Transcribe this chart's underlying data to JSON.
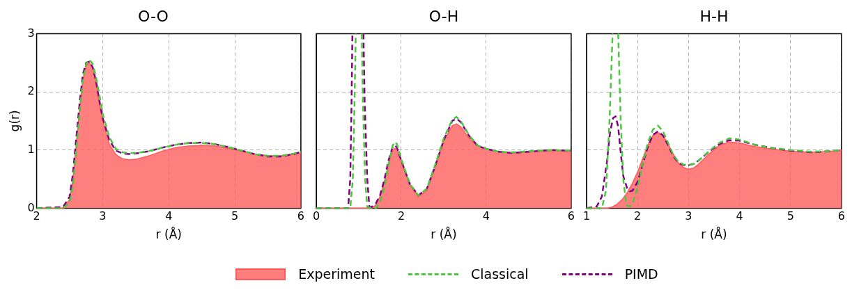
{
  "chart_data": [
    {
      "type": "line",
      "title": "O-O",
      "xlabel": "r (Å)",
      "ylabel": "g(r)",
      "xlim": [
        2,
        6
      ],
      "xticks": [
        2,
        3,
        4,
        5,
        6
      ],
      "ylim": [
        0,
        3
      ],
      "yticks": [
        0,
        1,
        2,
        3
      ],
      "grid": true,
      "marker": "none",
      "legend": "bottom",
      "series": [
        {
          "name": "Experiment",
          "type": "area",
          "color": "#ff5a5a",
          "x": [
            2,
            2.4,
            2.5,
            2.55,
            2.6,
            2.65,
            2.7,
            2.75,
            2.8,
            2.85,
            2.9,
            2.95,
            3.0,
            3.1,
            3.2,
            3.3,
            3.4,
            3.5,
            3.7,
            3.9,
            4.1,
            4.3,
            4.5,
            4.7,
            4.9,
            5.1,
            5.3,
            5.5,
            5.7,
            5.9,
            6
          ],
          "values": [
            0,
            0,
            0.15,
            0.5,
            1.1,
            1.7,
            2.2,
            2.45,
            2.5,
            2.4,
            2.15,
            1.8,
            1.5,
            1.1,
            0.92,
            0.85,
            0.83,
            0.84,
            0.9,
            0.98,
            1.04,
            1.07,
            1.08,
            1.07,
            1.03,
            0.98,
            0.93,
            0.9,
            0.9,
            0.93,
            0.95
          ]
        },
        {
          "name": "Classical",
          "type": "line",
          "line_style": "dashed",
          "color": "#4cc63f",
          "x": [
            2,
            2.4,
            2.5,
            2.55,
            2.6,
            2.65,
            2.7,
            2.75,
            2.8,
            2.85,
            2.9,
            2.95,
            3.0,
            3.1,
            3.2,
            3.3,
            3.4,
            3.5,
            3.7,
            3.9,
            4.1,
            4.3,
            4.5,
            4.7,
            4.9,
            5.1,
            5.3,
            5.5,
            5.7,
            5.9,
            6
          ],
          "values": [
            0,
            0,
            0.1,
            0.4,
            1.0,
            1.65,
            2.2,
            2.48,
            2.55,
            2.48,
            2.25,
            1.95,
            1.62,
            1.22,
            1.02,
            0.96,
            0.95,
            0.95,
            0.98,
            1.04,
            1.09,
            1.12,
            1.12,
            1.1,
            1.05,
            0.99,
            0.93,
            0.9,
            0.9,
            0.94,
            0.97
          ]
        },
        {
          "name": "PIMD",
          "type": "line",
          "line_style": "dashed",
          "color": "#800080",
          "x": [
            2,
            2.4,
            2.5,
            2.55,
            2.6,
            2.65,
            2.7,
            2.75,
            2.8,
            2.85,
            2.9,
            2.95,
            3.0,
            3.1,
            3.2,
            3.3,
            3.4,
            3.5,
            3.7,
            3.9,
            4.1,
            4.3,
            4.5,
            4.7,
            4.9,
            5.1,
            5.3,
            5.5,
            5.7,
            5.9,
            6
          ],
          "values": [
            0,
            0.02,
            0.2,
            0.6,
            1.2,
            1.8,
            2.3,
            2.5,
            2.52,
            2.42,
            2.18,
            1.85,
            1.55,
            1.17,
            0.99,
            0.94,
            0.93,
            0.94,
            0.98,
            1.04,
            1.09,
            1.12,
            1.13,
            1.1,
            1.05,
            0.99,
            0.93,
            0.89,
            0.89,
            0.93,
            0.97
          ]
        }
      ]
    },
    {
      "type": "line",
      "title": "O-H",
      "xlabel": "r (Å)",
      "xlim": [
        0,
        6
      ],
      "xticks": [
        0,
        2,
        4,
        6
      ],
      "ylim": [
        0,
        3
      ],
      "yticks": [
        0,
        1,
        2,
        3
      ],
      "grid": true,
      "tick_labels": "x",
      "marker": "none",
      "series": [
        {
          "type": "area",
          "color": "#ff5a5a",
          "x": [
            0,
            1.2,
            1.3,
            1.4,
            1.5,
            1.6,
            1.7,
            1.8,
            1.85,
            1.9,
            2.0,
            2.2,
            2.4,
            2.6,
            2.8,
            3.0,
            3.2,
            3.3,
            3.4,
            3.6,
            3.8,
            4.0,
            4.3,
            4.6,
            5.0,
            5.5,
            6
          ],
          "values": [
            0,
            0,
            0,
            0.05,
            0.2,
            0.45,
            0.75,
            1.0,
            1.03,
            1.0,
            0.8,
            0.4,
            0.2,
            0.3,
            0.7,
            1.15,
            1.42,
            1.45,
            1.4,
            1.2,
            1.07,
            1.02,
            0.97,
            0.95,
            0.97,
            0.99,
            0.98
          ]
        },
        {
          "type": "line",
          "line_style": "dashed",
          "color": "#4cc63f",
          "x": [
            0,
            0.8,
            0.86,
            0.9,
            0.93,
            1.0,
            1.07,
            1.1,
            1.15,
            1.2,
            1.3,
            1.4,
            1.5,
            1.6,
            1.7,
            1.8,
            1.85,
            1.9,
            2.0,
            2.2,
            2.4,
            2.6,
            2.8,
            3.0,
            3.2,
            3.3,
            3.4,
            3.6,
            3.8,
            4.0,
            4.3,
            4.6,
            5.0,
            5.5,
            6
          ],
          "values": [
            0,
            0,
            0.5,
            1.8,
            3,
            null,
            3,
            1.8,
            0.5,
            0.02,
            0,
            0,
            0.1,
            0.35,
            0.75,
            1.08,
            1.14,
            1.1,
            0.85,
            0.42,
            0.22,
            0.33,
            0.75,
            1.2,
            1.52,
            1.57,
            1.5,
            1.25,
            1.08,
            1.02,
            0.97,
            0.96,
            0.98,
            1.0,
            0.99
          ]
        },
        {
          "type": "line",
          "line_style": "dashed",
          "color": "#800080",
          "x": [
            0,
            0.75,
            0.8,
            0.83,
            0.85,
            0.98,
            1.11,
            1.14,
            1.2,
            1.25,
            1.3,
            1.4,
            1.5,
            1.6,
            1.7,
            1.8,
            1.85,
            1.9,
            2.0,
            2.2,
            2.4,
            2.6,
            2.8,
            3.0,
            3.2,
            3.3,
            3.4,
            3.6,
            3.8,
            4.0,
            4.3,
            4.6,
            5.0,
            5.5,
            6
          ],
          "values": [
            0,
            0,
            0.5,
            1.8,
            3,
            null,
            3,
            1.8,
            0.5,
            0.02,
            0.02,
            0.08,
            0.22,
            0.48,
            0.82,
            1.06,
            1.08,
            1.04,
            0.82,
            0.42,
            0.22,
            0.33,
            0.73,
            1.17,
            1.5,
            1.54,
            1.48,
            1.24,
            1.07,
            1.02,
            0.97,
            0.95,
            0.97,
            1.0,
            0.99
          ]
        }
      ]
    },
    {
      "type": "line",
      "title": "H-H",
      "xlabel": "r (Å)",
      "xlim": [
        1,
        6
      ],
      "xticks": [
        1,
        2,
        3,
        4,
        5,
        6
      ],
      "ylim": [
        0,
        3
      ],
      "yticks": [
        0,
        1,
        2,
        3
      ],
      "grid": true,
      "tick_labels": "x",
      "marker": "none",
      "series": [
        {
          "type": "area",
          "color": "#ff5a5a",
          "x": [
            1,
            1.4,
            1.5,
            1.6,
            1.7,
            1.8,
            1.9,
            2.0,
            2.1,
            2.2,
            2.3,
            2.4,
            2.5,
            2.6,
            2.7,
            2.8,
            2.9,
            3.0,
            3.1,
            3.2,
            3.4,
            3.6,
            3.8,
            4.0,
            4.3,
            4.6,
            5.0,
            5.4,
            5.8,
            6
          ],
          "values": [
            0,
            0,
            0.02,
            0.07,
            0.15,
            0.27,
            0.43,
            0.62,
            0.85,
            1.08,
            1.25,
            1.3,
            1.25,
            1.1,
            0.93,
            0.78,
            0.7,
            0.67,
            0.69,
            0.76,
            0.93,
            1.08,
            1.14,
            1.12,
            1.06,
            1.02,
            0.98,
            0.96,
            0.98,
            1.0
          ]
        },
        {
          "type": "line",
          "line_style": "dashed",
          "color": "#4cc63f",
          "x": [
            1,
            1.3,
            1.38,
            1.45,
            1.51,
            1.56,
            1.62,
            1.67,
            1.72,
            1.78,
            1.85,
            1.9,
            2.0,
            2.1,
            2.2,
            2.3,
            2.4,
            2.5,
            2.6,
            2.7,
            2.8,
            2.9,
            3.0,
            3.1,
            3.2,
            3.4,
            3.6,
            3.8,
            4.0,
            4.3,
            4.6,
            5.0,
            5.4,
            5.8,
            6
          ],
          "values": [
            0,
            0,
            0.3,
            1.5,
            3,
            null,
            3,
            1.5,
            0.5,
            0.05,
            0.03,
            0.08,
            0.35,
            0.75,
            1.12,
            1.35,
            1.42,
            1.32,
            1.12,
            0.92,
            0.8,
            0.75,
            0.74,
            0.76,
            0.82,
            0.98,
            1.12,
            1.2,
            1.18,
            1.09,
            1.04,
            1.0,
            0.97,
            0.98,
            1.0
          ]
        },
        {
          "type": "line",
          "line_style": "dashed",
          "color": "#800080",
          "x": [
            1,
            1.2,
            1.3,
            1.4,
            1.46,
            1.52,
            1.57,
            1.62,
            1.67,
            1.72,
            1.8,
            1.85,
            1.9,
            2.0,
            2.1,
            2.2,
            2.3,
            2.4,
            2.5,
            2.6,
            2.7,
            2.8,
            2.9,
            3.0,
            3.1,
            3.2,
            3.4,
            3.6,
            3.8,
            4.0,
            4.3,
            4.6,
            5.0,
            5.4,
            5.8,
            6
          ],
          "values": [
            0,
            0.03,
            0.2,
            0.8,
            1.3,
            1.55,
            1.58,
            1.4,
            0.95,
            0.55,
            0.33,
            0.29,
            0.3,
            0.45,
            0.75,
            1.05,
            1.26,
            1.32,
            1.25,
            1.08,
            0.9,
            0.78,
            0.74,
            0.74,
            0.76,
            0.82,
            0.97,
            1.1,
            1.17,
            1.16,
            1.09,
            1.04,
            0.99,
            0.96,
            0.98,
            1.0
          ]
        }
      ]
    }
  ]
}
